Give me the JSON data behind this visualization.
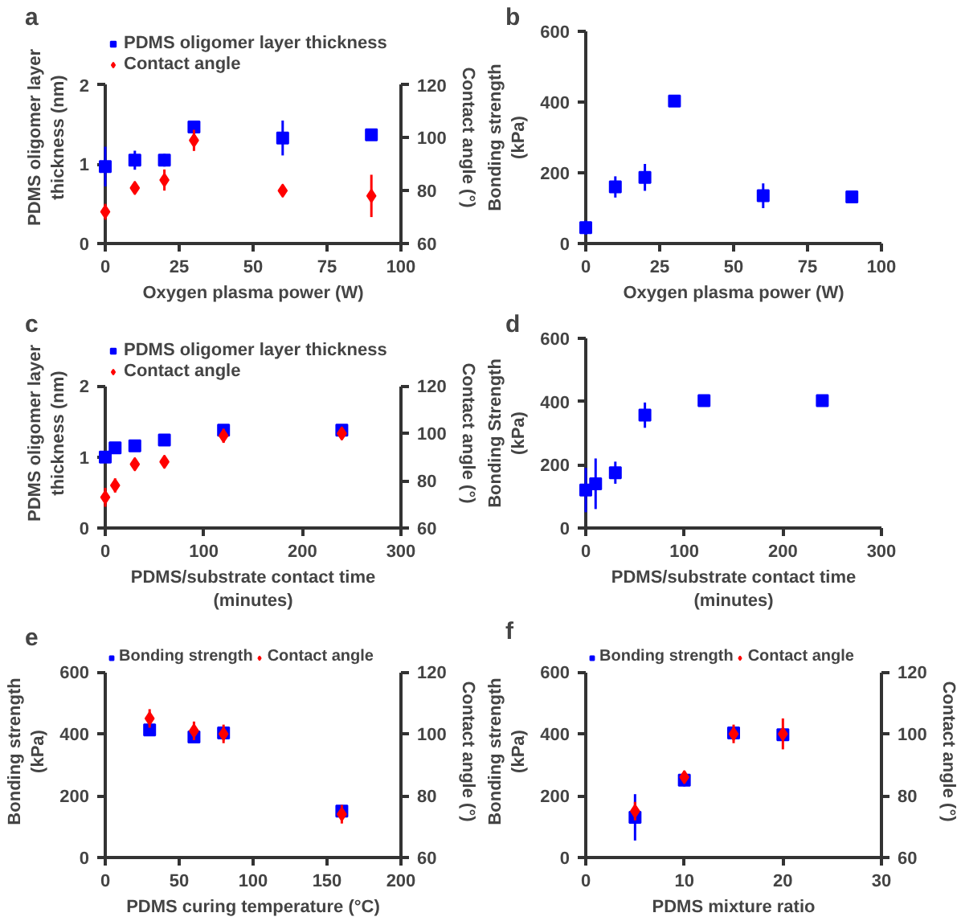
{
  "chart_data": [
    {
      "type": "scatter",
      "title": "a",
      "xlabel": "Oxygen plasma power (W)",
      "ylabel": "PDMS oligomer layer thickness (nm)",
      "y2label": "Contact angle (°)",
      "legend": "top left",
      "x": [
        0,
        10,
        20,
        30,
        60,
        90
      ],
      "xlim": [
        0,
        100
      ],
      "xticks": [
        0,
        25,
        50,
        75,
        100
      ],
      "ylim": [
        0,
        2
      ],
      "yticks": [
        0,
        1,
        2
      ],
      "y2lim": [
        60,
        120
      ],
      "y2ticks": [
        60,
        80,
        100,
        120
      ],
      "series": [
        {
          "name": "PDMS oligomer layer thickness",
          "color": "#0000ff",
          "marker": "square",
          "values": [
            0.97,
            1.05,
            1.05,
            1.47,
            1.33,
            1.37
          ],
          "errors": [
            0.25,
            0.12,
            0.08,
            0.07,
            0.22,
            0.05
          ]
        },
        {
          "name": "Contact angle",
          "color": "#ff0000",
          "marker": "diamond",
          "axis": "y2",
          "values": [
            72,
            81,
            84,
            99,
            80,
            78
          ],
          "errors": [
            3,
            2,
            4,
            4,
            2,
            8
          ]
        }
      ]
    },
    {
      "type": "scatter",
      "title": "b",
      "xlabel": "Oxygen plasma power (W)",
      "ylabel": "Bonding strength (kPa)",
      "x": [
        0,
        10,
        20,
        30,
        60,
        90
      ],
      "xlim": [
        0,
        100
      ],
      "xticks": [
        0,
        25,
        50,
        75,
        100
      ],
      "ylim": [
        0,
        600
      ],
      "yticks": [
        0,
        200,
        400,
        600
      ],
      "series": [
        {
          "color": "#0000ff",
          "marker": "square",
          "values": [
            45,
            160,
            187,
            403,
            135,
            132
          ],
          "errors": [
            20,
            30,
            38,
            5,
            35,
            10
          ]
        }
      ]
    },
    {
      "type": "scatter",
      "title": "c",
      "xlabel": "PDMS/substrate contact time (minutes)",
      "ylabel": "PDMS oligomer layer thickness (nm)",
      "y2label": "Contact angle (°)",
      "legend": "top left",
      "x": [
        0,
        10,
        30,
        60,
        120,
        240
      ],
      "xlim": [
        0,
        300
      ],
      "xticks": [
        0,
        100,
        200,
        300
      ],
      "ylim": [
        0,
        2
      ],
      "yticks": [
        0,
        1,
        2
      ],
      "y2lim": [
        60,
        120
      ],
      "y2ticks": [
        60,
        80,
        100,
        120
      ],
      "series": [
        {
          "name": "PDMS oligomer layer thickness",
          "color": "#0000ff",
          "marker": "square",
          "values": [
            1.0,
            1.13,
            1.16,
            1.24,
            1.38,
            1.38
          ],
          "errors": [
            0.05,
            0.04,
            0.03,
            0.08,
            0.04,
            0.04
          ]
        },
        {
          "name": "Contact angle",
          "color": "#ff0000",
          "marker": "diamond",
          "axis": "y2",
          "values": [
            73,
            78,
            87,
            88,
            99,
            100
          ],
          "errors": [
            4,
            3,
            2,
            1,
            3,
            2
          ]
        }
      ]
    },
    {
      "type": "scatter",
      "title": "d",
      "xlabel": "PDMS/substrate contact time (minutes)",
      "ylabel": "Bonding Strength (kPa)",
      "x": [
        0,
        10,
        30,
        60,
        120,
        240
      ],
      "xlim": [
        0,
        300
      ],
      "xticks": [
        0,
        100,
        200,
        300
      ],
      "ylim": [
        0,
        600
      ],
      "yticks": [
        0,
        200,
        400,
        600
      ],
      "series": [
        {
          "color": "#0000ff",
          "marker": "square",
          "values": [
            120,
            140,
            175,
            357,
            403,
            403
          ],
          "errors": [
            70,
            80,
            35,
            40,
            5,
            5
          ]
        }
      ]
    },
    {
      "type": "scatter",
      "title": "e",
      "xlabel": "PDMS curing temperature (°C)",
      "ylabel": "Bonding strength (kPa)",
      "y2label": "Contact angle (°)",
      "legend": "top",
      "x": [
        30,
        60,
        80,
        160
      ],
      "xlim": [
        0,
        200
      ],
      "xticks": [
        0,
        50,
        100,
        150,
        200
      ],
      "ylim": [
        0,
        600
      ],
      "yticks": [
        0,
        200,
        400,
        600
      ],
      "y2lim": [
        60,
        120
      ],
      "y2ticks": [
        60,
        80,
        100,
        120
      ],
      "series": [
        {
          "name": "Bonding strength",
          "color": "#0000ff",
          "marker": "square",
          "values": [
            413,
            390,
            403,
            150
          ],
          "errors": [
            8,
            15,
            10,
            10
          ]
        },
        {
          "name": "Contact angle",
          "color": "#ff0000",
          "marker": "diamond",
          "axis": "y2",
          "values": [
            105,
            101,
            100,
            74
          ],
          "errors": [
            3,
            3,
            3,
            3
          ]
        }
      ]
    },
    {
      "type": "scatter",
      "title": "f",
      "xlabel": "PDMS mixture ratio",
      "ylabel": "Bonding strength (kPa)",
      "y2label": "Contact angle (°)",
      "legend": "top",
      "x": [
        5,
        10,
        15,
        20
      ],
      "xlim": [
        0,
        30
      ],
      "xticks": [
        0,
        10,
        20,
        30
      ],
      "ylim": [
        0,
        600
      ],
      "yticks": [
        0,
        200,
        400,
        600
      ],
      "y2lim": [
        60,
        120
      ],
      "y2ticks": [
        60,
        80,
        100,
        120
      ],
      "series": [
        {
          "name": "Bonding strength",
          "color": "#0000ff",
          "marker": "square",
          "values": [
            130,
            250,
            403,
            397
          ],
          "errors": [
            75,
            20,
            10,
            10
          ]
        },
        {
          "name": "Contact angle",
          "color": "#ff0000",
          "marker": "diamond",
          "axis": "y2",
          "values": [
            75,
            86,
            100,
            100
          ],
          "errors": [
            3,
            2,
            3,
            5
          ]
        }
      ]
    }
  ]
}
